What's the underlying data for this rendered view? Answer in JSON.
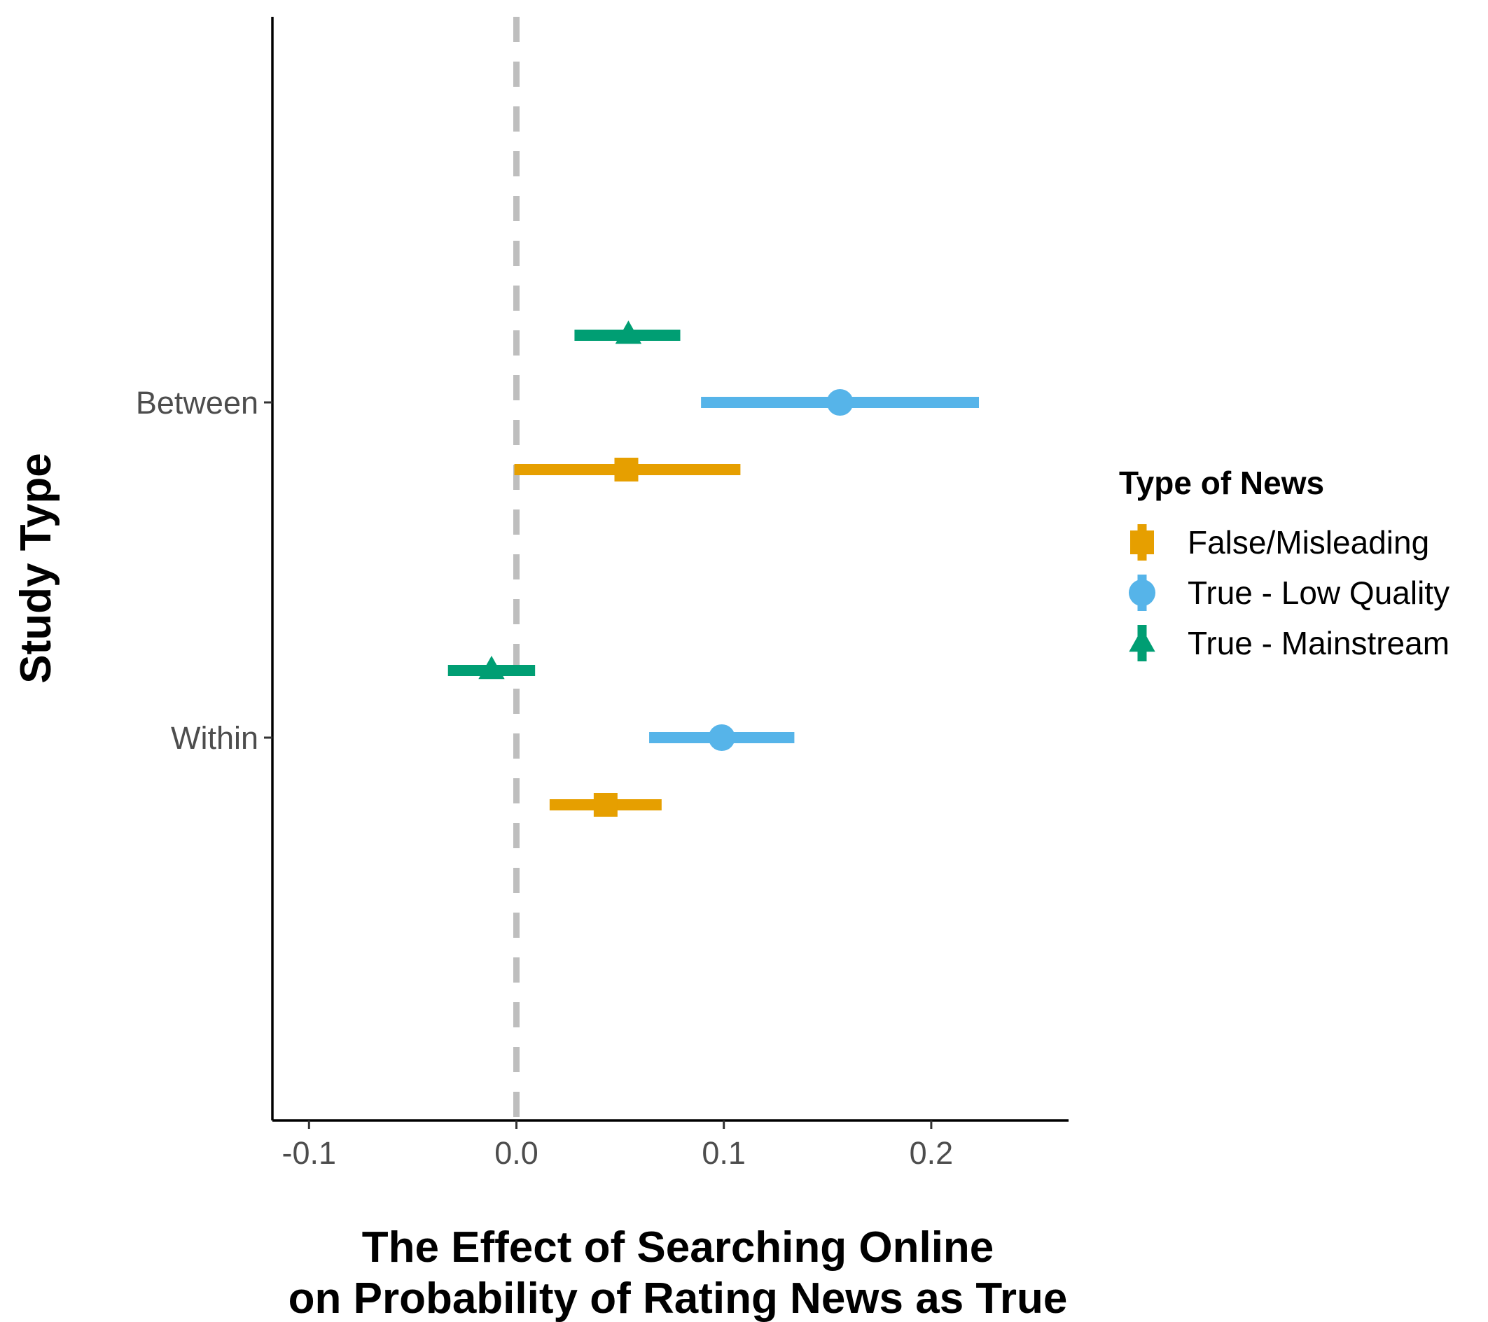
{
  "chart_data": {
    "type": "forest",
    "xlabel_lines": [
      "The Effect of Searching Online",
      "on Probability of Rating News as True"
    ],
    "ylabel": "Study Type",
    "xlim": [
      -0.1,
      0.265
    ],
    "xticks": [
      -0.1,
      0.0,
      0.1,
      0.2
    ],
    "xtick_labels": [
      "-0.1",
      "0.0",
      "0.1",
      "0.2"
    ],
    "categories": [
      "Between",
      "Within"
    ],
    "reference_line": 0.0,
    "grid": false,
    "legend": {
      "title": "Type of News",
      "position": "right"
    },
    "series": [
      {
        "name": "False/Misleading",
        "color": "#E69F00",
        "shape": "square",
        "points": [
          {
            "category": "Between",
            "estimate": 0.053,
            "low": -0.001,
            "high": 0.108
          },
          {
            "category": "Within",
            "estimate": 0.043,
            "low": 0.016,
            "high": 0.07
          }
        ]
      },
      {
        "name": "True - Low Quality",
        "color": "#56B4E9",
        "shape": "circle",
        "points": [
          {
            "category": "Between",
            "estimate": 0.156,
            "low": 0.089,
            "high": 0.223
          },
          {
            "category": "Within",
            "estimate": 0.099,
            "low": 0.064,
            "high": 0.134
          }
        ]
      },
      {
        "name": "True - Mainstream",
        "color": "#009E73",
        "shape": "triangle",
        "points": [
          {
            "category": "Between",
            "estimate": 0.054,
            "low": 0.028,
            "high": 0.079
          },
          {
            "category": "Within",
            "estimate": -0.012,
            "low": -0.033,
            "high": 0.009
          }
        ]
      }
    ]
  }
}
